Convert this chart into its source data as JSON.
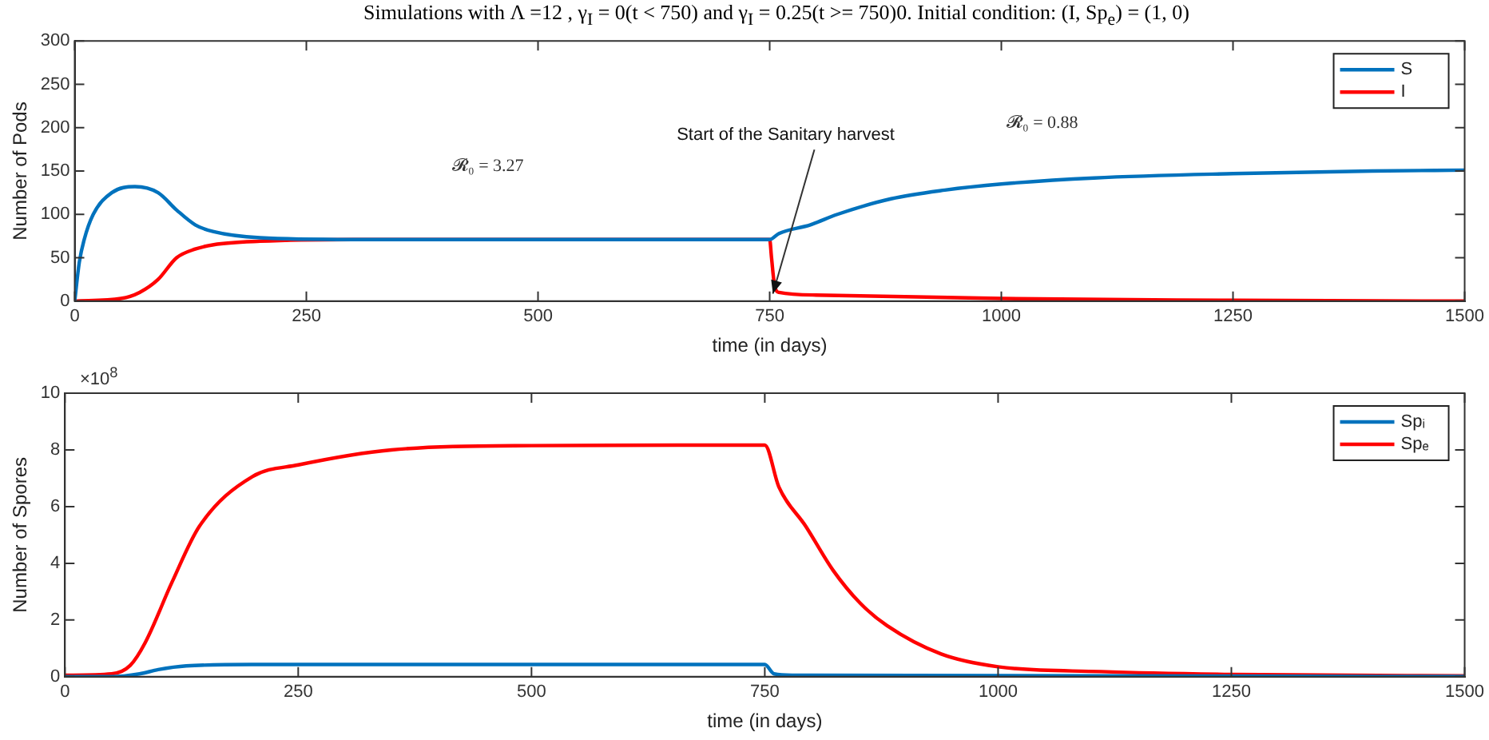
{
  "chart_data": [
    {
      "type": "line",
      "title": "Simulations with Λ =12 , γ$_{I}$ = 0(t < 750) and γ$_{I}$ = 0.25(t >= 750)0. Initial condition: (I, Sp$_{e}$) = (1, 0)",
      "xlabel": "time (in days)",
      "ylabel": "Number of Pods",
      "xlim": [
        0,
        1500
      ],
      "xticks": [
        0,
        250,
        500,
        750,
        1000,
        1250,
        1500
      ],
      "ylim": [
        0,
        300
      ],
      "yticks": [
        0,
        50,
        100,
        150,
        200,
        250,
        300
      ],
      "grid": false,
      "legend": "top right",
      "marker": "none",
      "line_style": "solid",
      "annotations": [
        "𝓡₀ = 3.27",
        "𝓡₀ = 0.88",
        {
          "text": "Start of the Sanitary harvest",
          "x": 750,
          "y": 3
        }
      ],
      "series": [
        {
          "name": "S",
          "color": "#0072bd",
          "x": [
            0,
            5,
            10,
            20,
            40,
            65,
            90,
            110,
            130,
            150,
            200,
            300,
            750,
            760,
            794,
            823,
            881,
            939,
            1000,
            1100,
            1250,
            1400,
            1500
          ],
          "values": [
            0,
            45,
            70,
            100,
            125,
            132,
            125,
            105,
            88,
            80,
            73,
            71,
            71,
            78,
            88,
            100,
            118,
            128,
            135,
            142,
            147,
            150,
            151
          ]
        },
        {
          "name": "I",
          "color": "#ff0000",
          "x": [
            0,
            50,
            70,
            90,
            110,
            130,
            150,
            200,
            300,
            750,
            752,
            755,
            760,
            800,
            1000,
            1250,
            1500
          ],
          "values": [
            0,
            3,
            10,
            25,
            50,
            60,
            65,
            69,
            71,
            71,
            50,
            20,
            10,
            7,
            3,
            1,
            0
          ]
        }
      ]
    },
    {
      "type": "line",
      "xlabel": "time (in days)",
      "ylabel": "Number of Spores",
      "xlim": [
        0,
        1500
      ],
      "xticks": [
        0,
        250,
        500,
        750,
        1000,
        1250,
        1500
      ],
      "ylim": [
        0,
        10
      ],
      "yticks": [
        0,
        2,
        4,
        6,
        8,
        10
      ],
      "grid": false,
      "legend": "top right",
      "marker": "none",
      "line_style": "solid",
      "annotations": [
        "×10$^{8}$"
      ],
      "series": [
        {
          "name": "Spᵢ",
          "color": "#0072bd",
          "x": [
            0,
            50,
            80,
            100,
            130,
            200,
            750,
            760,
            780,
            1500
          ],
          "values": [
            0,
            0,
            0.1,
            0.25,
            0.38,
            0.43,
            0.43,
            0.1,
            0.05,
            0.01
          ]
        },
        {
          "name": "Spₑ",
          "color": "#ff0000",
          "x": [
            0,
            50,
            70,
            86,
            115,
            144,
            201,
            250,
            350,
            500,
            750,
            765,
            794,
            823,
            852,
            881,
            939,
            1000,
            1110,
            1250,
            1500
          ],
          "values": [
            0.05,
            0.1,
            0.4,
            1.2,
            3.35,
            5.3,
            7.06,
            7.47,
            8.0,
            8.15,
            8.17,
            6.7,
            5.3,
            3.76,
            2.6,
            1.8,
            0.8,
            0.35,
            0.18,
            0.08,
            0.03
          ]
        }
      ]
    }
  ]
}
